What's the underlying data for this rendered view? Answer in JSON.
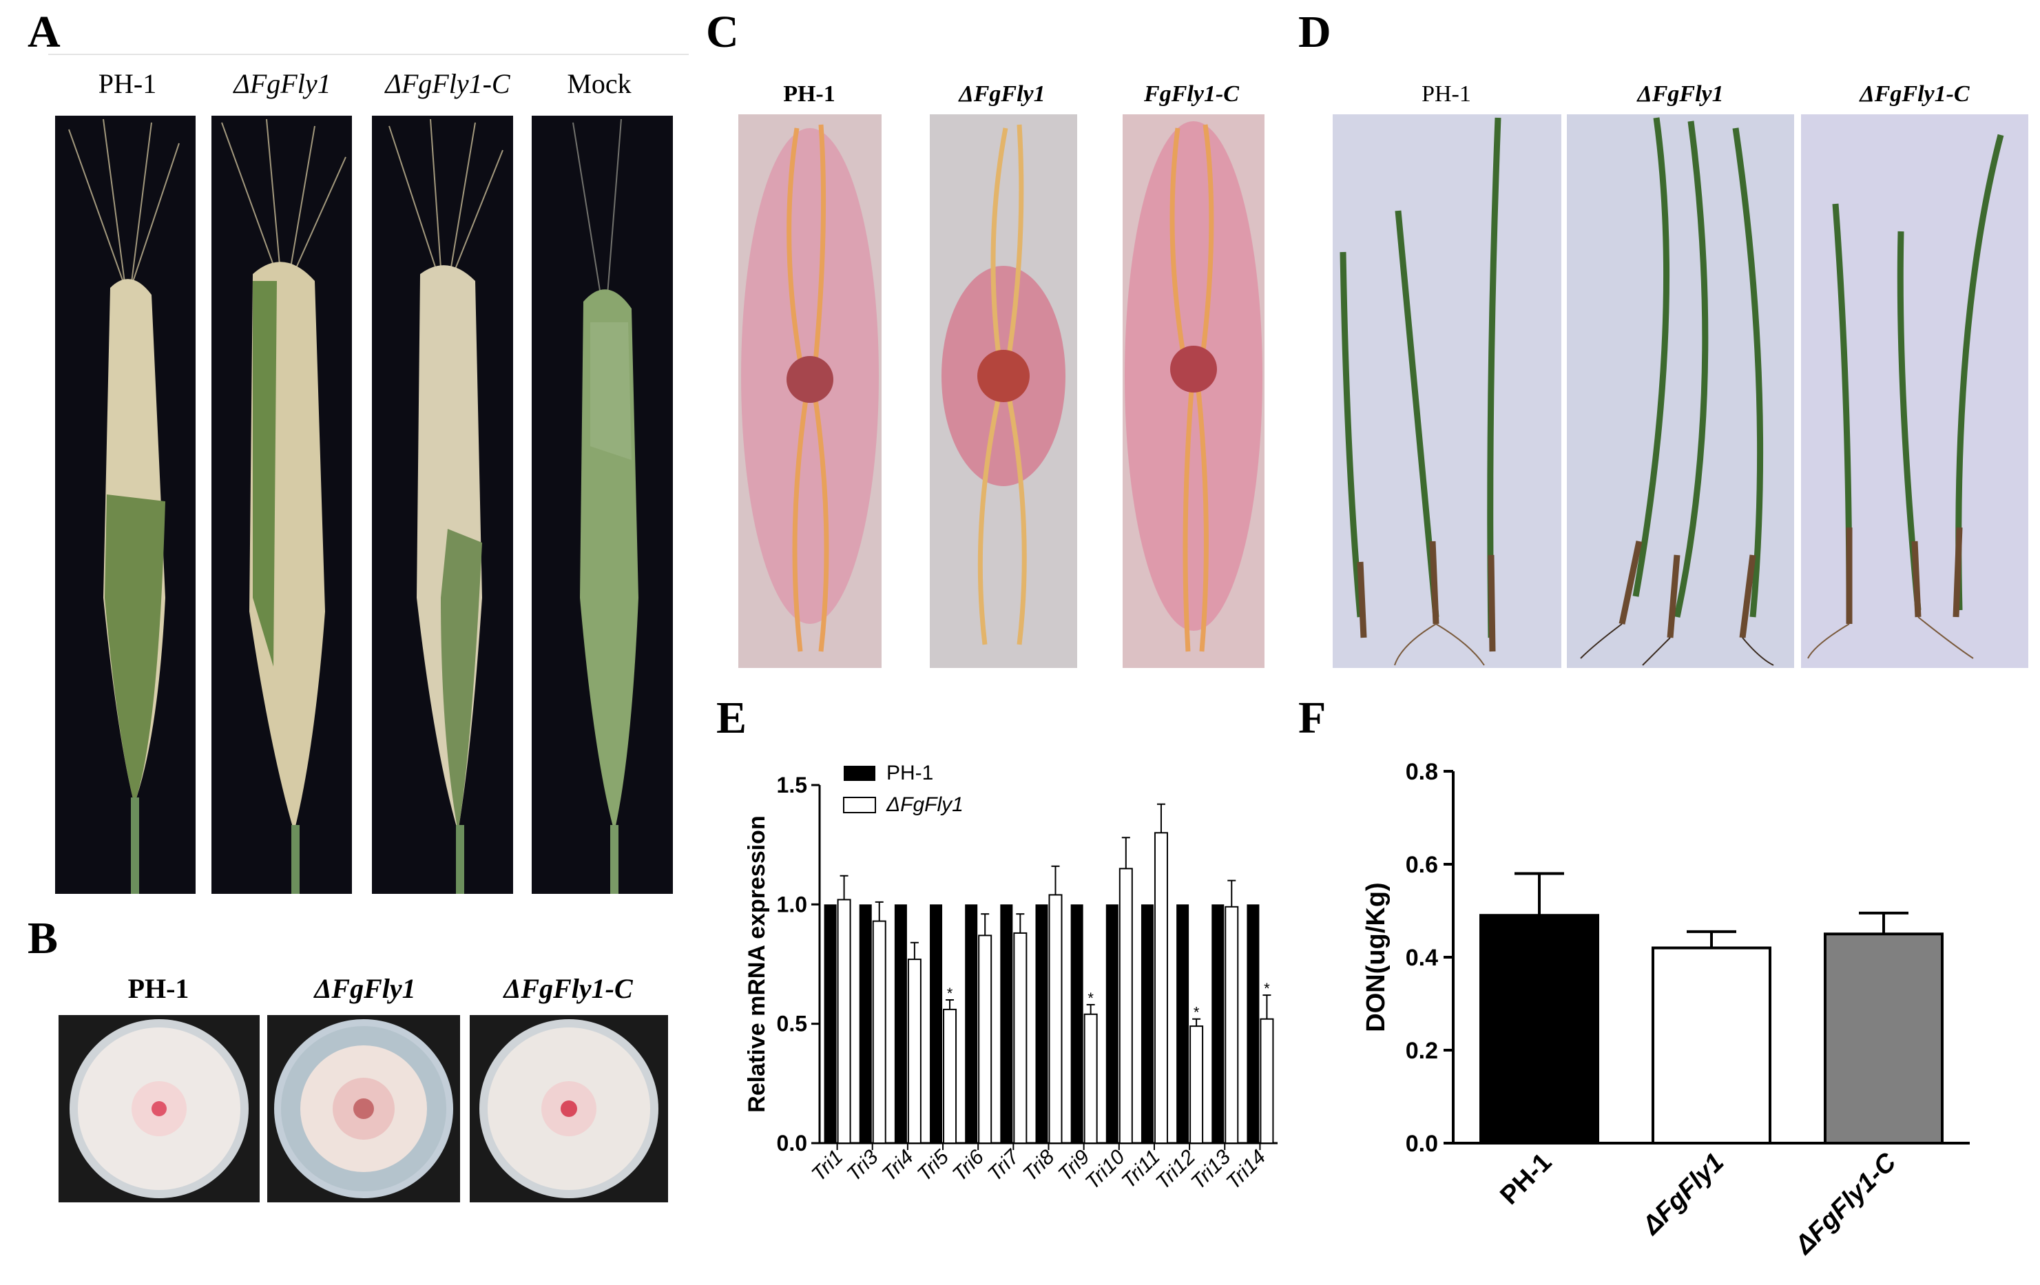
{
  "panel_letters": {
    "a": "A",
    "b": "B",
    "c": "C",
    "d": "D",
    "e": "E",
    "f": "F"
  },
  "panel_a": {
    "labels": [
      "PH-1",
      "ΔFgFly1",
      "ΔFgFly1-C",
      "Mock"
    ]
  },
  "panel_b": {
    "labels": [
      "PH-1",
      "ΔFgFly1",
      "ΔFgFly1-C"
    ]
  },
  "panel_c": {
    "labels": [
      "PH-1",
      "ΔFgFly1",
      "FgFly1-C"
    ]
  },
  "panel_d": {
    "labels": [
      "PH-1",
      "ΔFgFly1",
      "ΔFgFly1-C"
    ]
  },
  "colors": {
    "wt_bar": "#000000",
    "mutant_bar": "#ffffff",
    "complement_bar": "#808080",
    "photo_bg": "#0c0c14"
  },
  "chart_data": [
    {
      "panel": "E",
      "type": "bar",
      "ylabel": "Relative mRNA expression",
      "ylim": [
        0,
        1.5
      ],
      "yticks": [
        "0.0",
        "0.5",
        "1.0",
        "1.5"
      ],
      "categories": [
        "Tri1",
        "Tri3",
        "Tri4",
        "Tri5",
        "Tri6",
        "Tri7",
        "Tri8",
        "Tri9",
        "Tri10",
        "Tri11",
        "Tri12",
        "Tri13",
        "Tri14"
      ],
      "legend_position": "top-left",
      "significance_mark": "*",
      "series": [
        {
          "name": "PH-1",
          "values": [
            1,
            1,
            1,
            1,
            1,
            1,
            1,
            1,
            1,
            1,
            1,
            1,
            1
          ]
        },
        {
          "name": "ΔFgFly1",
          "values": [
            1.02,
            0.93,
            0.77,
            0.56,
            0.87,
            0.88,
            1.04,
            0.54,
            1.15,
            1.3,
            0.49,
            0.99,
            0.52
          ],
          "errors": [
            0.1,
            0.08,
            0.07,
            0.04,
            0.09,
            0.08,
            0.12,
            0.04,
            0.13,
            0.12,
            0.03,
            0.11,
            0.1
          ],
          "significant": [
            false,
            false,
            false,
            true,
            false,
            false,
            false,
            true,
            false,
            false,
            true,
            false,
            true
          ]
        }
      ]
    },
    {
      "panel": "F",
      "type": "bar",
      "ylabel": "DON(ug/Kg)",
      "ylim": [
        0,
        0.8
      ],
      "yticks": [
        "0.0",
        "0.2",
        "0.4",
        "0.6",
        "0.8"
      ],
      "categories": [
        "PH-1",
        "ΔFgFly1",
        "ΔFgFly1-C"
      ],
      "values": [
        0.49,
        0.42,
        0.45
      ],
      "errors": [
        0.09,
        0.035,
        0.045
      ]
    }
  ]
}
